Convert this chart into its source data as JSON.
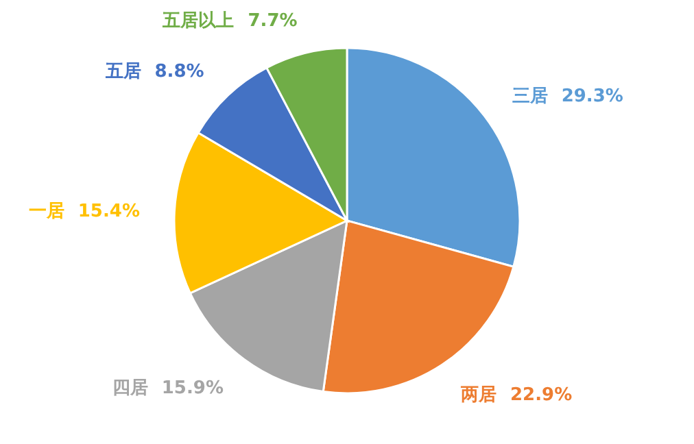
{
  "chart_data": {
    "type": "pie",
    "categories": [
      "三居",
      "两居",
      "四居",
      "一居",
      "五居",
      "五居以上"
    ],
    "values": [
      29.3,
      22.9,
      15.9,
      15.4,
      8.8,
      7.7
    ],
    "value_labels": [
      "29.3%",
      "22.9%",
      "15.9%",
      "15.4%",
      "8.8%",
      "7.7%"
    ],
    "colors": [
      "#5b9bd5",
      "#ed7d31",
      "#a5a5a5",
      "#ffc000",
      "#4472c4",
      "#70ad47"
    ]
  }
}
